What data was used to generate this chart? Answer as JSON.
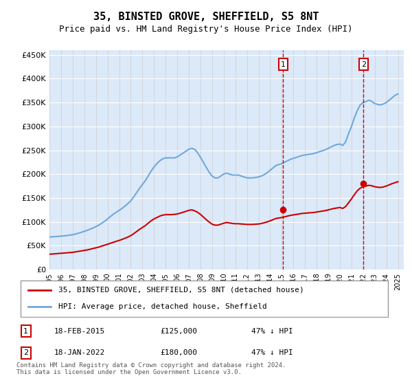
{
  "title": "35, BINSTED GROVE, SHEFFIELD, S5 8NT",
  "subtitle": "Price paid vs. HM Land Registry's House Price Index (HPI)",
  "legend_line1": "35, BINSTED GROVE, SHEFFIELD, S5 8NT (detached house)",
  "legend_line2": "HPI: Average price, detached house, Sheffield",
  "footnote": "Contains HM Land Registry data © Crown copyright and database right 2024.\nThis data is licensed under the Open Government Licence v3.0.",
  "purchase1_date": "18-FEB-2015",
  "purchase1_price": 125000,
  "purchase1_label": "47% ↓ HPI",
  "purchase2_date": "18-JAN-2022",
  "purchase2_price": 180000,
  "purchase2_label": "47% ↓ HPI",
  "hpi_color": "#6fa8dc",
  "property_color": "#cc0000",
  "marker_vline_color": "#cc0000",
  "background_color": "#dce9f8",
  "ylim": [
    0,
    460000
  ],
  "xlim_start": 1995.0,
  "xlim_end": 2025.5,
  "yticks": [
    0,
    50000,
    100000,
    150000,
    200000,
    250000,
    300000,
    350000,
    400000,
    450000
  ],
  "ytick_labels": [
    "£0",
    "£50K",
    "£100K",
    "£150K",
    "£200K",
    "£250K",
    "£300K",
    "£350K",
    "£400K",
    "£450K"
  ],
  "hpi_years": [
    1995.0,
    1995.25,
    1995.5,
    1995.75,
    1996.0,
    1996.25,
    1996.5,
    1996.75,
    1997.0,
    1997.25,
    1997.5,
    1997.75,
    1998.0,
    1998.25,
    1998.5,
    1998.75,
    1999.0,
    1999.25,
    1999.5,
    1999.75,
    2000.0,
    2000.25,
    2000.5,
    2000.75,
    2001.0,
    2001.25,
    2001.5,
    2001.75,
    2002.0,
    2002.25,
    2002.5,
    2002.75,
    2003.0,
    2003.25,
    2003.5,
    2003.75,
    2004.0,
    2004.25,
    2004.5,
    2004.75,
    2005.0,
    2005.25,
    2005.5,
    2005.75,
    2006.0,
    2006.25,
    2006.5,
    2006.75,
    2007.0,
    2007.25,
    2007.5,
    2007.75,
    2008.0,
    2008.25,
    2008.5,
    2008.75,
    2009.0,
    2009.25,
    2009.5,
    2009.75,
    2010.0,
    2010.25,
    2010.5,
    2010.75,
    2011.0,
    2011.25,
    2011.5,
    2011.75,
    2012.0,
    2012.25,
    2012.5,
    2012.75,
    2013.0,
    2013.25,
    2013.5,
    2013.75,
    2014.0,
    2014.25,
    2014.5,
    2014.75,
    2015.0,
    2015.25,
    2015.5,
    2015.75,
    2016.0,
    2016.25,
    2016.5,
    2016.75,
    2017.0,
    2017.25,
    2017.5,
    2017.75,
    2018.0,
    2018.25,
    2018.5,
    2018.75,
    2019.0,
    2019.25,
    2019.5,
    2019.75,
    2020.0,
    2020.25,
    2020.5,
    2020.75,
    2021.0,
    2021.25,
    2021.5,
    2021.75,
    2022.0,
    2022.25,
    2022.5,
    2022.75,
    2023.0,
    2023.25,
    2023.5,
    2023.75,
    2024.0,
    2024.25,
    2024.5,
    2024.75,
    2025.0
  ],
  "hpi_values": [
    68000,
    68500,
    69000,
    69500,
    70000,
    70500,
    71200,
    72000,
    73000,
    74500,
    76000,
    78000,
    80000,
    82000,
    84500,
    87000,
    90000,
    93000,
    97000,
    101000,
    106000,
    111000,
    116000,
    120000,
    124000,
    128000,
    133000,
    138000,
    144000,
    152000,
    161000,
    170000,
    178000,
    186000,
    196000,
    206000,
    215000,
    222000,
    228000,
    232000,
    234000,
    234000,
    234000,
    234000,
    236000,
    240000,
    244000,
    248000,
    252000,
    254000,
    252000,
    245000,
    235000,
    225000,
    214000,
    204000,
    196000,
    192000,
    192000,
    196000,
    200000,
    202000,
    200000,
    198000,
    198000,
    198000,
    196000,
    194000,
    192000,
    192000,
    192000,
    193000,
    194000,
    196000,
    199000,
    203000,
    208000,
    213000,
    218000,
    220000,
    222000,
    225000,
    228000,
    231000,
    233000,
    235000,
    237000,
    239000,
    240000,
    241000,
    242000,
    243000,
    245000,
    247000,
    249000,
    251000,
    254000,
    257000,
    260000,
    262000,
    263000,
    260000,
    268000,
    285000,
    300000,
    318000,
    333000,
    345000,
    350000,
    352000,
    355000,
    352000,
    348000,
    346000,
    345000,
    347000,
    350000,
    355000,
    360000,
    365000,
    368000
  ],
  "prop_years": [
    1995.0,
    1995.25,
    1995.5,
    1995.75,
    1996.0,
    1996.25,
    1996.5,
    1996.75,
    1997.0,
    1997.25,
    1997.5,
    1997.75,
    1998.0,
    1998.25,
    1998.5,
    1998.75,
    1999.0,
    1999.25,
    1999.5,
    1999.75,
    2000.0,
    2000.25,
    2000.5,
    2000.75,
    2001.0,
    2001.25,
    2001.5,
    2001.75,
    2002.0,
    2002.25,
    2002.5,
    2002.75,
    2003.0,
    2003.25,
    2003.5,
    2003.75,
    2004.0,
    2004.25,
    2004.5,
    2004.75,
    2005.0,
    2005.25,
    2005.5,
    2005.75,
    2006.0,
    2006.25,
    2006.5,
    2006.75,
    2007.0,
    2007.25,
    2007.5,
    2007.75,
    2008.0,
    2008.25,
    2008.5,
    2008.75,
    2009.0,
    2009.25,
    2009.5,
    2009.75,
    2010.0,
    2010.25,
    2010.5,
    2010.75,
    2011.0,
    2011.25,
    2011.5,
    2011.75,
    2012.0,
    2012.25,
    2012.5,
    2012.75,
    2013.0,
    2013.25,
    2013.5,
    2013.75,
    2014.0,
    2014.25,
    2014.5,
    2014.75,
    2015.0,
    2015.25,
    2015.5,
    2015.75,
    2016.0,
    2016.25,
    2016.5,
    2016.75,
    2017.0,
    2017.25,
    2017.5,
    2017.75,
    2018.0,
    2018.25,
    2018.5,
    2018.75,
    2019.0,
    2019.25,
    2019.5,
    2019.75,
    2020.0,
    2020.25,
    2020.5,
    2020.75,
    2021.0,
    2021.25,
    2021.5,
    2021.75,
    2022.0,
    2022.25,
    2022.5,
    2022.75,
    2023.0,
    2023.25,
    2023.5,
    2023.75,
    2024.0,
    2024.25,
    2024.5,
    2024.75,
    2025.0
  ],
  "prop_values": [
    32000,
    32500,
    33000,
    33500,
    34000,
    34500,
    35000,
    35500,
    36000,
    37000,
    38000,
    39000,
    40000,
    41000,
    42500,
    44000,
    45500,
    47000,
    49000,
    51000,
    53000,
    55000,
    57000,
    59000,
    61000,
    63000,
    65500,
    68000,
    71000,
    75000,
    79500,
    84000,
    88000,
    92000,
    97000,
    102000,
    106000,
    109000,
    112000,
    114000,
    115000,
    115000,
    115000,
    115500,
    116500,
    118000,
    120000,
    122000,
    124000,
    125000,
    123000,
    120000,
    115500,
    110000,
    104500,
    99500,
    95000,
    93000,
    93000,
    95000,
    97000,
    98500,
    97500,
    96500,
    96000,
    96000,
    95500,
    95000,
    94500,
    94500,
    94500,
    95000,
    95500,
    96500,
    98000,
    100000,
    102000,
    104500,
    107000,
    108000,
    109000,
    110500,
    112000,
    113500,
    114500,
    115500,
    116500,
    117500,
    118000,
    118500,
    119000,
    119500,
    120500,
    121500,
    122500,
    123500,
    125000,
    126500,
    128000,
    129000,
    130000,
    128000,
    132000,
    140000,
    148000,
    157000,
    165000,
    170500,
    173500,
    175000,
    176500,
    175500,
    173500,
    172500,
    172000,
    173000,
    175000,
    177500,
    180000,
    182000,
    184000
  ],
  "purchase1_x": 2015.12,
  "purchase2_x": 2022.04
}
